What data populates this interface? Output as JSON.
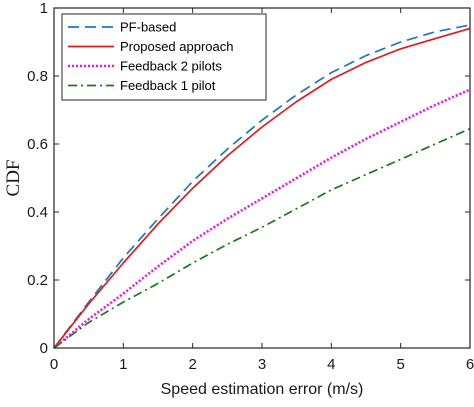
{
  "chart_data": {
    "type": "line",
    "xlabel": "Speed estimation error (m/s)",
    "ylabel": "CDF",
    "xlim": [
      0,
      6
    ],
    "ylim": [
      0,
      1
    ],
    "xticks": [
      0,
      1,
      2,
      3,
      4,
      5,
      6
    ],
    "yticks": [
      0,
      0.2,
      0.4,
      0.6,
      0.8,
      1
    ],
    "xtick_labels": [
      "0",
      "1",
      "2",
      "3",
      "4",
      "5",
      "6"
    ],
    "ytick_labels": [
      "0",
      "0.2",
      "0.4",
      "0.6",
      "0.8",
      "1"
    ],
    "grid": false,
    "legend_position": "top-left",
    "series": [
      {
        "name": "PF-based",
        "color": "#1f77b4",
        "style": "dashed",
        "x": [
          0,
          0.5,
          1,
          1.5,
          2,
          2.5,
          3,
          3.5,
          4,
          4.5,
          5,
          5.5,
          6
        ],
        "y": [
          0,
          0.135,
          0.265,
          0.38,
          0.49,
          0.585,
          0.67,
          0.745,
          0.81,
          0.86,
          0.9,
          0.93,
          0.95
        ]
      },
      {
        "name": "Proposed approach",
        "color": "#e31a1c",
        "style": "solid",
        "x": [
          0,
          0.5,
          1,
          1.5,
          2,
          2.5,
          3,
          3.5,
          4,
          4.5,
          5,
          5.5,
          6
        ],
        "y": [
          0,
          0.13,
          0.25,
          0.365,
          0.47,
          0.565,
          0.65,
          0.725,
          0.79,
          0.84,
          0.88,
          0.91,
          0.94
        ]
      },
      {
        "name": "Feedback 2 pilots",
        "color": "#e817e8",
        "style": "dotted",
        "x": [
          0,
          0.5,
          1,
          1.5,
          2,
          2.5,
          3,
          3.5,
          4,
          4.5,
          5,
          5.5,
          6
        ],
        "y": [
          0,
          0.085,
          0.16,
          0.24,
          0.315,
          0.38,
          0.44,
          0.5,
          0.56,
          0.615,
          0.665,
          0.715,
          0.76
        ]
      },
      {
        "name": "Feedback 1 pilot",
        "color": "#1a7a1a",
        "style": "dashdot",
        "x": [
          0,
          0.5,
          1,
          1.5,
          2,
          2.5,
          3,
          3.5,
          4,
          4.5,
          5,
          5.5,
          6
        ],
        "y": [
          0,
          0.075,
          0.135,
          0.19,
          0.25,
          0.305,
          0.355,
          0.41,
          0.465,
          0.51,
          0.555,
          0.6,
          0.645
        ]
      }
    ]
  }
}
